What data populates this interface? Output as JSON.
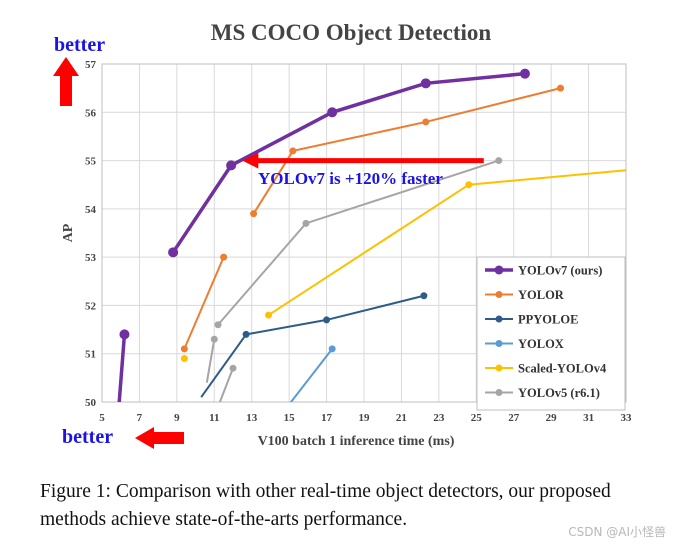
{
  "chart_data": {
    "type": "line",
    "title": "MS COCO Object Detection",
    "xlabel": "V100 batch 1 inference time (ms)",
    "ylabel": "AP",
    "xlim": [
      5,
      33
    ],
    "ylim": [
      50,
      57
    ],
    "xticks": [
      5,
      7,
      9,
      11,
      13,
      15,
      17,
      19,
      21,
      23,
      25,
      27,
      29,
      31,
      33
    ],
    "yticks": [
      50,
      51,
      52,
      53,
      54,
      55,
      56,
      57
    ],
    "grid": true,
    "legend_position": "bottom-right",
    "series": [
      {
        "name": "YOLOv7 (ours)",
        "color": "#7030a0",
        "x": [
          5.9,
          6.2
        ],
        "y": [
          49.9,
          51.4
        ]
      },
      {
        "name": "YOLOv7 (ours)",
        "color": "#7030a0",
        "x": [
          8.8,
          11.9,
          17.3,
          22.3,
          27.6
        ],
        "y": [
          53.1,
          54.9,
          56.0,
          56.6,
          56.8
        ]
      },
      {
        "name": "YOLOR",
        "color": "#ed7d31",
        "x": [
          9.4,
          11.5
        ],
        "y": [
          51.1,
          53.0
        ]
      },
      {
        "name": "YOLOR",
        "color": "#ed7d31",
        "x": [
          13.1,
          15.2,
          22.3,
          29.5
        ],
        "y": [
          53.9,
          55.2,
          55.8,
          56.5
        ]
      },
      {
        "name": "PPYOLOE",
        "color": "#2e5c8a",
        "x": [
          10.3,
          12.7,
          17.0,
          22.2
        ],
        "y": [
          50.1,
          51.4,
          51.7,
          52.2
        ]
      },
      {
        "name": "YOLOX",
        "color": "#5b9bd5",
        "x": [
          14.9,
          17.3
        ],
        "y": [
          49.9,
          51.1
        ]
      },
      {
        "name": "Scaled-YOLOv4",
        "color": "#ffc000",
        "x": [
          9.4
        ],
        "y": [
          50.9
        ]
      },
      {
        "name": "Scaled-YOLOv4",
        "color": "#ffc000",
        "x": [
          13.9,
          24.6,
          33.0
        ],
        "y": [
          51.8,
          54.5,
          54.8
        ]
      },
      {
        "name": "YOLOv5 (r6.1)",
        "color": "#a5a5a5",
        "x": [
          10.6,
          11.0
        ],
        "y": [
          50.4,
          51.3
        ]
      },
      {
        "name": "YOLOv5 (r6.1)",
        "color": "#a5a5a5",
        "x": [
          11.2,
          12.0
        ],
        "y": [
          49.9,
          50.7
        ]
      },
      {
        "name": "YOLOv5 (r6.1)",
        "color": "#a5a5a5",
        "x": [
          11.2,
          15.9,
          26.2
        ],
        "y": [
          51.6,
          53.7,
          55.0
        ]
      }
    ],
    "legend": [
      {
        "label": "YOLOv7 (ours)",
        "color": "#7030a0"
      },
      {
        "label": "YOLOR",
        "color": "#ed7d31"
      },
      {
        "label": "PPYOLOE",
        "color": "#2e5c8a"
      },
      {
        "label": "YOLOX",
        "color": "#5b9bd5"
      },
      {
        "label": "Scaled-YOLOv4",
        "color": "#ffc000"
      },
      {
        "label": "YOLOv5 (r6.1)",
        "color": "#a5a5a5"
      }
    ],
    "annotations": {
      "better_top": "better",
      "better_bottom": "better",
      "speedup": "YOLOv7 is +120% faster",
      "arrow_from": {
        "x": 25.4,
        "y": 55.0
      },
      "arrow_to": {
        "x": 12.5,
        "y": 55.0
      }
    }
  },
  "caption": "Figure 1: Comparison with other real-time object detectors, our proposed methods achieve state-of-the-arts performance.",
  "watermark": "CSDN @AI小怪兽",
  "colors": {
    "arrow_red": "#ff0000",
    "annotation_blue": "#1a12e8",
    "axis_text": "#444444",
    "grid": "#d9d9d9"
  }
}
